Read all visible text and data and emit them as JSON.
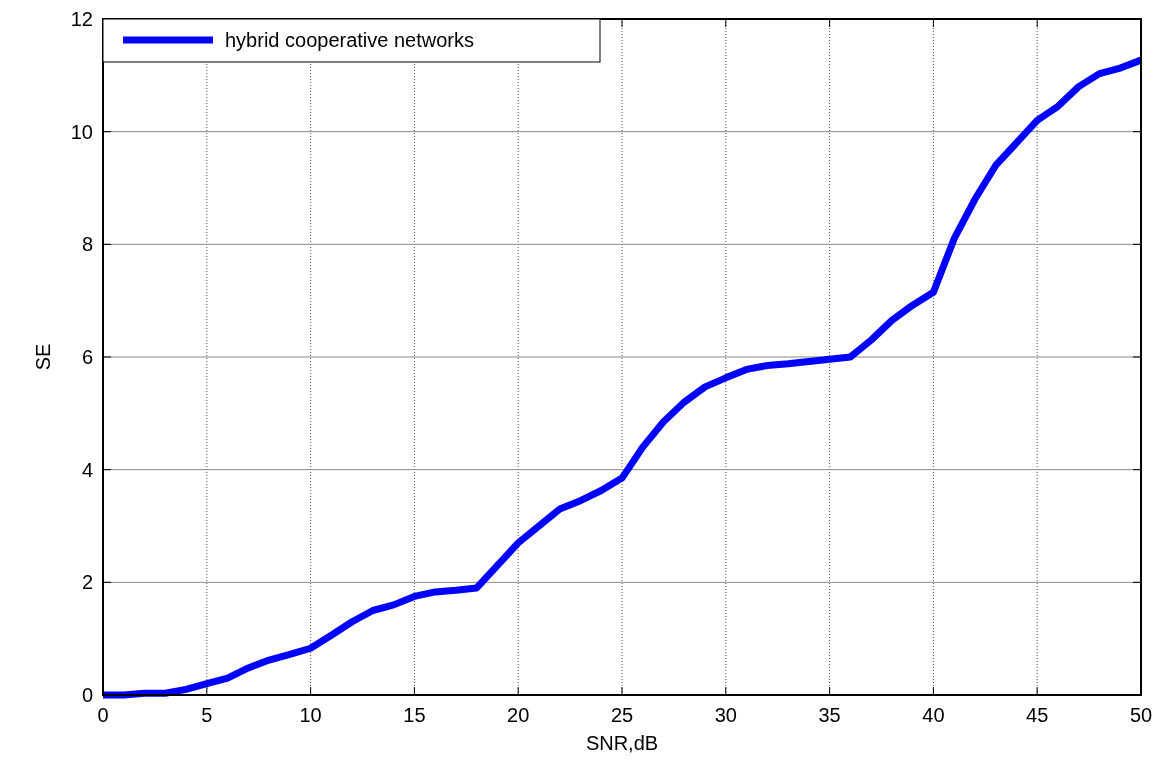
{
  "chart_data": {
    "type": "line",
    "xlabel": "SNR,dB",
    "ylabel": "SE",
    "x": [
      0,
      1,
      2,
      3,
      4,
      5,
      6,
      7,
      8,
      9,
      10,
      11,
      12,
      13,
      14,
      15,
      16,
      17,
      18,
      19,
      20,
      21,
      22,
      23,
      24,
      25,
      26,
      27,
      28,
      29,
      30,
      31,
      32,
      33,
      34,
      35,
      36,
      37,
      38,
      39,
      40,
      41,
      42,
      43,
      44,
      45,
      46,
      47,
      48,
      49,
      50
    ],
    "series": [
      {
        "name": "hybrid cooperative networks",
        "color": "#0000ff",
        "values": [
          0,
          0,
          0.03,
          0.03,
          0.1,
          0.2,
          0.3,
          0.48,
          0.62,
          0.72,
          0.83,
          1.06,
          1.3,
          1.5,
          1.6,
          1.75,
          1.83,
          1.86,
          1.9,
          2.3,
          2.7,
          3.0,
          3.3,
          3.45,
          3.63,
          3.85,
          4.4,
          4.85,
          5.2,
          5.47,
          5.63,
          5.78,
          5.85,
          5.88,
          5.92,
          5.96,
          6.0,
          6.3,
          6.65,
          6.92,
          7.15,
          8.1,
          8.8,
          9.4,
          9.8,
          10.2,
          10.45,
          10.8,
          11.03,
          11.13,
          11.27
        ]
      }
    ],
    "xlim": [
      0,
      50
    ],
    "ylim": [
      0,
      12
    ],
    "xticks": [
      0,
      5,
      10,
      15,
      20,
      25,
      30,
      35,
      40,
      45,
      50
    ],
    "yticks": [
      0,
      2,
      4,
      6,
      8,
      10,
      12
    ],
    "grid": true,
    "legend": "top left",
    "marker": "none",
    "line_style": "solid"
  }
}
